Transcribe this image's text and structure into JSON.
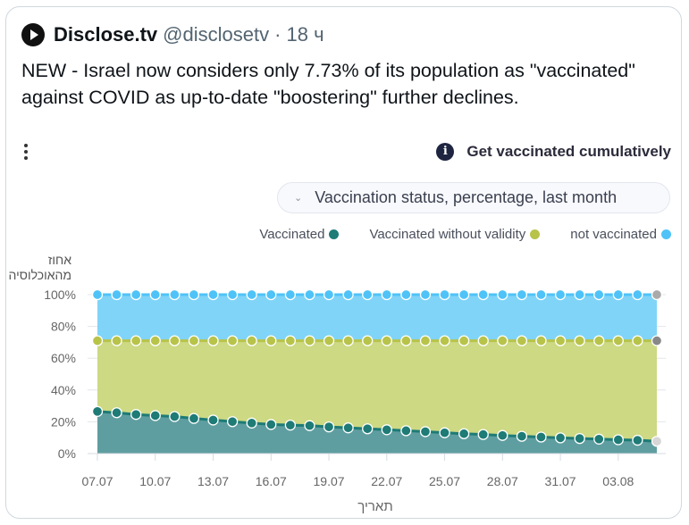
{
  "tweet": {
    "author_name": "Disclose.tv",
    "handle": "@disclosetv",
    "time": "· 18 ч",
    "text": "NEW - Israel now considers only 7.73% of its population as \"vaccinated\" against COVID as up-to-date \"boostering\" further declines."
  },
  "widget": {
    "title": "Get vaccinated cumulatively",
    "info_icon": "i",
    "dropdown_selected": "Vaccination status, percentage, last month",
    "dropdown_icon": "⌄"
  },
  "chart_data": {
    "type": "area",
    "stacked": true,
    "ylabel": "אחוז מהאוכלוסיה",
    "ylabel_lines": [
      "אחוז",
      "מהאוכלוסיה"
    ],
    "xlabel": "תאריך",
    "ylim": [
      0,
      100
    ],
    "yticks": [
      "0%",
      "20%",
      "40%",
      "60%",
      "80%",
      "100%"
    ],
    "xtick_labels": [
      "07.07",
      "10.07",
      "13.07",
      "16.07",
      "19.07",
      "22.07",
      "25.07",
      "28.07",
      "31.07",
      "03.08"
    ],
    "x": [
      "07.07",
      "08.07",
      "09.07",
      "10.07",
      "11.07",
      "12.07",
      "13.07",
      "14.07",
      "15.07",
      "16.07",
      "17.07",
      "18.07",
      "19.07",
      "20.07",
      "21.07",
      "22.07",
      "23.07",
      "24.07",
      "25.07",
      "26.07",
      "27.07",
      "28.07",
      "29.07",
      "30.07",
      "31.07",
      "01.08",
      "02.08",
      "03.08",
      "04.08",
      "05.08"
    ],
    "grid": true,
    "legend_position": "top-right",
    "series": [
      {
        "name": "Vaccinated",
        "color": "#1e7b76",
        "fill": "#5f9ea0",
        "values": [
          26.5,
          25.7,
          24.6,
          23.9,
          23.3,
          22.1,
          21.1,
          20.1,
          19.2,
          18.3,
          17.9,
          17.6,
          16.8,
          16.2,
          15.6,
          15.0,
          14.4,
          13.8,
          13.1,
          12.5,
          12.0,
          11.4,
          10.9,
          10.4,
          9.9,
          9.5,
          9.1,
          8.7,
          8.4,
          7.73
        ]
      },
      {
        "name": "Vaccinated without validity",
        "color": "#b8c34a",
        "fill": "#cdd983",
        "cumulative_top": 71
      },
      {
        "name": "not vaccinated",
        "color": "#4fc3f7",
        "fill": "#80d4f8",
        "cumulative_top": 100
      }
    ]
  }
}
